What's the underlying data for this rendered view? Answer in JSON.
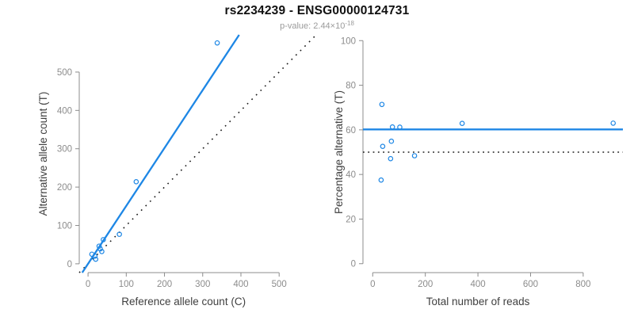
{
  "header": {
    "title": "rs2234239 - ENSG00000124731",
    "subtitle_prefix": "p-value: 2.44×10",
    "subtitle_exponent": "-18"
  },
  "colors": {
    "accent_blue": "#1E87E5",
    "dotted_black": "#1b1b1b",
    "axis_gray": "#8c8c8c",
    "tick_label_gray": "#8c8c8c",
    "axis_label_dark": "#3f3f3f",
    "subtitle_gray": "#9b9b9b",
    "title_black": "#111111"
  },
  "chart_data": [
    {
      "type": "scatter",
      "name": "allele-counts-scatter",
      "xlabel": "Reference allele count (C)",
      "ylabel": "Alternative allele count (T)",
      "xticks": [
        0,
        100,
        200,
        300,
        400,
        500
      ],
      "yticks": [
        0,
        100,
        200,
        300,
        400,
        500
      ],
      "xlim": [
        -23,
        597
      ],
      "ylim": [
        -23,
        597
      ],
      "points": [
        [
          10,
          25
        ],
        [
          18,
          20
        ],
        [
          20,
          12
        ],
        [
          32,
          39
        ],
        [
          36,
          32
        ],
        [
          29,
          46
        ],
        [
          40,
          63
        ],
        [
          82,
          77
        ],
        [
          126,
          214
        ],
        [
          338,
          576
        ]
      ],
      "lines": [
        {
          "label": "identity",
          "slope": 1,
          "intercept": 0,
          "style": "dotted",
          "color_key": "dotted_black"
        },
        {
          "label": "fit",
          "slope": 1.51,
          "intercept": 0,
          "style": "solid",
          "color_key": "accent_blue"
        }
      ],
      "legend": "none",
      "grid": false
    },
    {
      "type": "scatter",
      "name": "percentage-vs-reads-scatter",
      "xlabel": "Total number of reads",
      "ylabel": "Percentage alternative (T)",
      "xticks": [
        0,
        200,
        400,
        600,
        800
      ],
      "yticks": [
        0,
        20,
        40,
        60,
        80,
        100
      ],
      "xlim": [
        -37,
        951
      ],
      "ylim": [
        -4,
        104
      ],
      "points": [
        [
          35,
          71.4
        ],
        [
          38,
          52.6
        ],
        [
          32,
          37.5
        ],
        [
          71,
          54.9
        ],
        [
          68,
          47.1
        ],
        [
          75,
          61.3
        ],
        [
          103,
          61.2
        ],
        [
          159,
          48.4
        ],
        [
          340,
          62.9
        ],
        [
          914,
          63.0
        ]
      ],
      "lines": [
        {
          "label": "fifty-percent",
          "slope": 0,
          "intercept": 50,
          "style": "dotted",
          "color_key": "dotted_black"
        },
        {
          "label": "mean-percentage",
          "slope": 0,
          "intercept": 60.2,
          "style": "solid",
          "color_key": "accent_blue"
        }
      ],
      "legend": "none",
      "grid": false
    }
  ]
}
